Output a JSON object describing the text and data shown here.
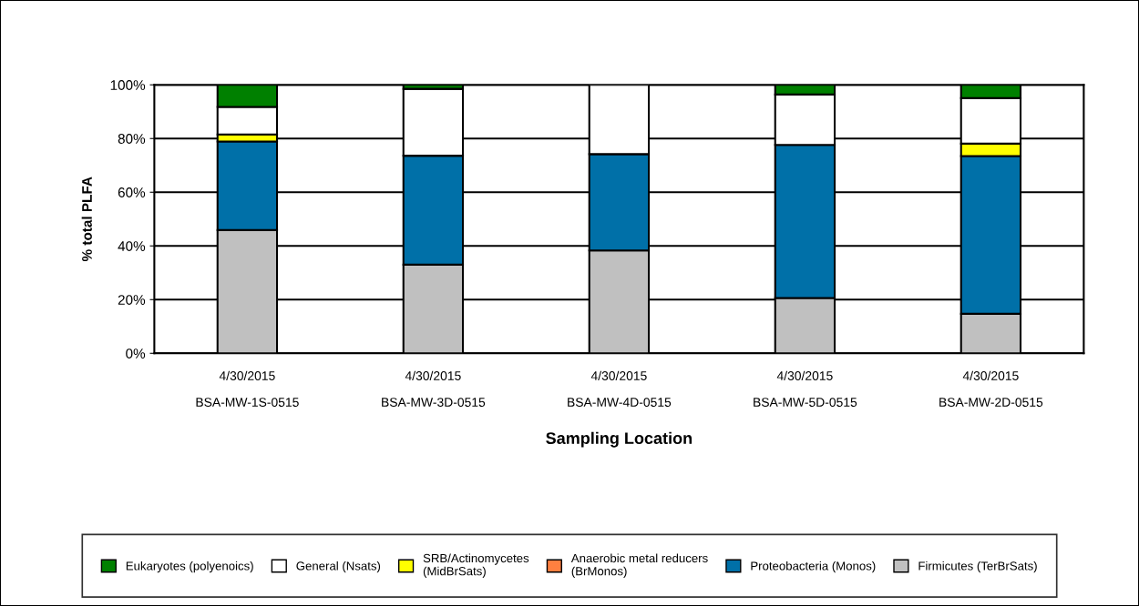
{
  "chart_data": {
    "type": "bar",
    "stacked": true,
    "xlabel": "Sampling Location",
    "ylabel": "% total PLFA",
    "categories": [
      "4/30/2015\nBSA-MW-1S-0515",
      "4/30/2015\nBSA-MW-3D-0515",
      "4/30/2015\nBSA-MW-4D-0515",
      "4/30/2015\nBSA-MW-5D-0515",
      "4/30/2015\nBSA-MW-2D-0515"
    ],
    "series": [
      {
        "name": "Firmicutes (TerBrSats)",
        "color": "#c0c0c0",
        "values": [
          45.9,
          33.0,
          38.3,
          20.6,
          14.7
        ]
      },
      {
        "name": "Proteobacteria (Monos)",
        "color": "#0070a8",
        "values": [
          33.0,
          40.6,
          35.9,
          57.0,
          58.8
        ]
      },
      {
        "name": "Anaerobic metal reducers\n(BrMonos)",
        "color": "#ff8040",
        "values": [
          0,
          0,
          0,
          0,
          0
        ]
      },
      {
        "name": "SRB/Actinomycetes\n(MidBrSats)",
        "color": "#ffff00",
        "values": [
          2.6,
          0,
          0,
          0,
          4.6
        ]
      },
      {
        "name": "General (Nsats)",
        "color": "#ffffff",
        "values": [
          10.3,
          24.9,
          25.8,
          18.8,
          17.0
        ]
      },
      {
        "name": "Eukaryotes (polyenoics)",
        "color": "#008000",
        "values": [
          8.2,
          1.5,
          0,
          3.6,
          4.9
        ]
      }
    ],
    "ylim": [
      0,
      100
    ],
    "yticks": [
      {
        "value": 0,
        "label": "0%"
      },
      {
        "value": 20,
        "label": "20%"
      },
      {
        "value": 40,
        "label": "40%"
      },
      {
        "value": 60,
        "label": "60%"
      },
      {
        "value": 80,
        "label": "80%"
      },
      {
        "value": 100,
        "label": "100%"
      }
    ],
    "grid": "y",
    "legend": "bottom"
  }
}
